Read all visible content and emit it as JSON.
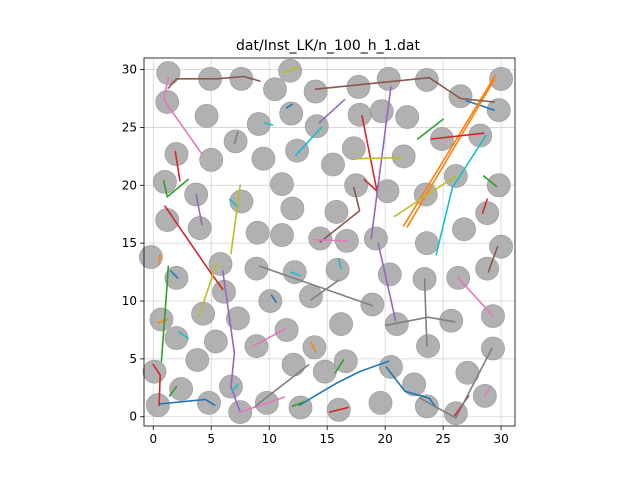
{
  "chart_data": {
    "type": "scatter",
    "title": "dat/Inst_LK/n_100_h_1.dat",
    "xlabel": "",
    "ylabel": "",
    "xlim": [
      -0.8,
      31.2
    ],
    "ylim": [
      -0.8,
      31.0
    ],
    "x_ticks": [
      0,
      5,
      10,
      15,
      20,
      25,
      30
    ],
    "y_ticks": [
      0,
      5,
      10,
      15,
      20,
      25,
      30
    ],
    "grid": true,
    "disk_radius": 1.0,
    "disks": [
      [
        1.3,
        29.7
      ],
      [
        4.9,
        29.2
      ],
      [
        7.6,
        29.2
      ],
      [
        11.8,
        29.9
      ],
      [
        17.7,
        28.5
      ],
      [
        20.3,
        29.2
      ],
      [
        23.6,
        29.1
      ],
      [
        26.5,
        27.7
      ],
      [
        30.0,
        29.2
      ],
      [
        1.2,
        27.2
      ],
      [
        10.5,
        28.3
      ],
      [
        14.0,
        28.1
      ],
      [
        17.8,
        26.1
      ],
      [
        19.7,
        26.4
      ],
      [
        21.9,
        25.9
      ],
      [
        29.8,
        26.5
      ],
      [
        4.6,
        26.0
      ],
      [
        9.1,
        25.3
      ],
      [
        11.9,
        26.2
      ],
      [
        14.1,
        25.1
      ],
      [
        24.9,
        24.0
      ],
      [
        28.2,
        24.3
      ],
      [
        7.1,
        23.8
      ],
      [
        2.0,
        22.7
      ],
      [
        5.0,
        22.2
      ],
      [
        9.5,
        22.3
      ],
      [
        12.4,
        23.0
      ],
      [
        15.5,
        21.8
      ],
      [
        17.3,
        23.2
      ],
      [
        21.6,
        22.5
      ],
      [
        1.0,
        20.3
      ],
      [
        11.1,
        20.1
      ],
      [
        17.5,
        20.0
      ],
      [
        20.2,
        19.5
      ],
      [
        23.5,
        19.2
      ],
      [
        26.1,
        20.8
      ],
      [
        29.8,
        20.0
      ],
      [
        3.7,
        19.2
      ],
      [
        7.6,
        18.6
      ],
      [
        12.0,
        18.0
      ],
      [
        15.8,
        17.7
      ],
      [
        28.8,
        17.6
      ],
      [
        1.2,
        17.0
      ],
      [
        4.0,
        16.3
      ],
      [
        9.0,
        15.9
      ],
      [
        11.1,
        15.7
      ],
      [
        14.4,
        15.4
      ],
      [
        16.7,
        15.2
      ],
      [
        19.2,
        15.4
      ],
      [
        23.6,
        15.0
      ],
      [
        26.8,
        16.2
      ],
      [
        30.0,
        14.7
      ],
      [
        -0.2,
        13.8
      ],
      [
        2.0,
        12.0
      ],
      [
        5.8,
        13.2
      ],
      [
        8.9,
        12.8
      ],
      [
        12.2,
        12.5
      ],
      [
        15.9,
        12.7
      ],
      [
        20.4,
        12.3
      ],
      [
        23.4,
        11.9
      ],
      [
        26.3,
        12.0
      ],
      [
        28.8,
        12.8
      ],
      [
        6.1,
        10.8
      ],
      [
        10.1,
        10.0
      ],
      [
        13.6,
        10.4
      ],
      [
        18.9,
        9.7
      ],
      [
        29.3,
        8.7
      ],
      [
        0.7,
        8.4
      ],
      [
        4.3,
        8.9
      ],
      [
        7.3,
        8.5
      ],
      [
        21.0,
        8.0
      ],
      [
        25.7,
        8.3
      ],
      [
        16.2,
        8.0
      ],
      [
        11.5,
        7.5
      ],
      [
        2.0,
        6.8
      ],
      [
        5.4,
        6.5
      ],
      [
        8.9,
        6.1
      ],
      [
        13.9,
        6.0
      ],
      [
        23.7,
        6.1
      ],
      [
        29.3,
        5.9
      ],
      [
        3.8,
        4.9
      ],
      [
        12.1,
        4.5
      ],
      [
        14.8,
        3.9
      ],
      [
        16.6,
        4.8
      ],
      [
        20.5,
        4.3
      ],
      [
        27.1,
        3.8
      ],
      [
        0.1,
        3.9
      ],
      [
        2.4,
        2.4
      ],
      [
        6.7,
        2.6
      ],
      [
        22.5,
        2.8
      ],
      [
        28.6,
        1.8
      ],
      [
        0.4,
        1.0
      ],
      [
        4.8,
        1.2
      ],
      [
        7.5,
        0.4
      ],
      [
        9.8,
        1.2
      ],
      [
        12.7,
        0.8
      ],
      [
        16.0,
        0.6
      ],
      [
        19.6,
        1.2
      ],
      [
        23.6,
        0.9
      ],
      [
        26.1,
        0.3
      ]
    ],
    "series": [
      {
        "color": "#1f77b4",
        "points": [
          [
            12.6,
            1.0
          ],
          [
            15.8,
            2.9
          ],
          [
            17.8,
            3.9
          ],
          [
            20.3,
            4.8
          ]
        ]
      },
      {
        "color": "#1f77b4",
        "points": [
          [
            20.1,
            4.3
          ],
          [
            21.7,
            2.2
          ],
          [
            23.8,
            1.6
          ],
          [
            24.4,
            0.8
          ]
        ]
      },
      {
        "color": "#1f77b4",
        "points": [
          [
            0.5,
            1.1
          ],
          [
            4.5,
            1.5
          ],
          [
            5.3,
            1.0
          ]
        ]
      },
      {
        "color": "#1f77b4",
        "points": [
          [
            1.5,
            12.6
          ],
          [
            2.1,
            12.0
          ]
        ]
      },
      {
        "color": "#1f77b4",
        "points": [
          [
            10.2,
            10.5
          ],
          [
            10.6,
            9.9
          ]
        ]
      },
      {
        "color": "#1f77b4",
        "points": [
          [
            27.0,
            27.3
          ],
          [
            29.4,
            26.5
          ]
        ]
      },
      {
        "color": "#1f77b4",
        "points": [
          [
            11.5,
            26.7
          ],
          [
            12.0,
            27.0
          ]
        ]
      },
      {
        "color": "#ff7f0e",
        "points": [
          [
            21.6,
            16.5
          ],
          [
            29.5,
            29.5
          ]
        ]
      },
      {
        "color": "#ff7f0e",
        "points": [
          [
            21.9,
            16.4
          ],
          [
            29.4,
            29.1
          ]
        ]
      },
      {
        "color": "#ff7f0e",
        "points": [
          [
            0.4,
            8.1
          ],
          [
            1.2,
            8.4
          ]
        ]
      },
      {
        "color": "#ff7f0e",
        "points": [
          [
            0.6,
            14.0
          ],
          [
            0.5,
            13.3
          ]
        ]
      },
      {
        "color": "#ff7f0e",
        "points": [
          [
            13.6,
            6.4
          ],
          [
            14.0,
            5.6
          ]
        ]
      },
      {
        "color": "#2ca02c",
        "points": [
          [
            0.7,
            4.8
          ],
          [
            1.2,
            11.5
          ],
          [
            1.3,
            13.0
          ]
        ]
      },
      {
        "color": "#2ca02c",
        "points": [
          [
            3.0,
            20.5
          ],
          [
            1.2,
            19.0
          ],
          [
            0.9,
            20.4
          ]
        ]
      },
      {
        "color": "#2ca02c",
        "points": [
          [
            22.8,
            24.0
          ],
          [
            25.0,
            25.7
          ]
        ]
      },
      {
        "color": "#2ca02c",
        "points": [
          [
            28.5,
            20.8
          ],
          [
            29.6,
            19.9
          ]
        ]
      },
      {
        "color": "#2ca02c",
        "points": [
          [
            15.7,
            3.8
          ],
          [
            16.4,
            4.9
          ]
        ]
      },
      {
        "color": "#2ca02c",
        "points": [
          [
            1.4,
            1.8
          ],
          [
            2.0,
            2.6
          ]
        ]
      },
      {
        "color": "#2ca02c",
        "points": [
          [
            12.0,
            0.9
          ],
          [
            13.0,
            1.3
          ]
        ]
      },
      {
        "color": "#d62728",
        "points": [
          [
            0.0,
            4.5
          ],
          [
            0.6,
            3.6
          ],
          [
            0.5,
            1.0
          ]
        ]
      },
      {
        "color": "#d62728",
        "points": [
          [
            1.9,
            22.9
          ],
          [
            2.3,
            20.4
          ]
        ]
      },
      {
        "color": "#d62728",
        "points": [
          [
            1.0,
            18.2
          ],
          [
            4.7,
            12.8
          ],
          [
            6.0,
            11.0
          ]
        ]
      },
      {
        "color": "#d62728",
        "points": [
          [
            24.0,
            24.0
          ],
          [
            28.5,
            24.5
          ]
        ]
      },
      {
        "color": "#d62728",
        "points": [
          [
            28.4,
            17.6
          ],
          [
            28.8,
            18.8
          ]
        ]
      },
      {
        "color": "#d62728",
        "points": [
          [
            26.0,
            0.1
          ],
          [
            27.2,
            1.8
          ]
        ]
      },
      {
        "color": "#d62728",
        "points": [
          [
            15.2,
            0.4
          ],
          [
            16.8,
            0.8
          ]
        ]
      },
      {
        "color": "#d62728",
        "points": [
          [
            18.2,
            20.5
          ],
          [
            19.3,
            19.5
          ],
          [
            18.0,
            26.0
          ]
        ]
      },
      {
        "color": "#9467bd",
        "points": [
          [
            6.0,
            12.6
          ],
          [
            7.0,
            5.5
          ],
          [
            6.7,
            2.6
          ],
          [
            7.5,
            0.4
          ]
        ]
      },
      {
        "color": "#9467bd",
        "points": [
          [
            18.8,
            15.4
          ],
          [
            20.5,
            28.5
          ]
        ]
      },
      {
        "color": "#9467bd",
        "points": [
          [
            19.4,
            15.0
          ],
          [
            20.9,
            8.3
          ]
        ]
      },
      {
        "color": "#9467bd",
        "points": [
          [
            3.7,
            19.2
          ],
          [
            4.2,
            16.6
          ]
        ]
      },
      {
        "color": "#9467bd",
        "points": [
          [
            14.3,
            25.4
          ],
          [
            16.5,
            27.4
          ]
        ]
      },
      {
        "color": "#8c564b",
        "points": [
          [
            1.3,
            28.4
          ],
          [
            2.0,
            29.2
          ],
          [
            5.5,
            29.2
          ],
          [
            7.8,
            29.4
          ],
          [
            9.2,
            29.0
          ]
        ]
      },
      {
        "color": "#8c564b",
        "points": [
          [
            14.0,
            28.3
          ],
          [
            23.8,
            29.3
          ],
          [
            26.5,
            27.5
          ],
          [
            29.4,
            27.2
          ]
        ]
      },
      {
        "color": "#8c564b",
        "points": [
          [
            14.4,
            15.1
          ],
          [
            17.8,
            17.8
          ],
          [
            17.3,
            19.8
          ]
        ]
      },
      {
        "color": "#8c564b",
        "points": [
          [
            28.9,
            12.5
          ],
          [
            29.7,
            14.7
          ]
        ]
      },
      {
        "color": "#e377c2",
        "points": [
          [
            1.3,
            29.3
          ],
          [
            0.9,
            27.4
          ],
          [
            4.2,
            22.7
          ]
        ]
      },
      {
        "color": "#e377c2",
        "points": [
          [
            8.6,
            6.1
          ],
          [
            11.4,
            7.6
          ]
        ]
      },
      {
        "color": "#e377c2",
        "points": [
          [
            26.3,
            12.0
          ],
          [
            29.3,
            8.7
          ]
        ]
      },
      {
        "color": "#e377c2",
        "points": [
          [
            13.9,
            15.3
          ],
          [
            16.7,
            15.2
          ]
        ]
      },
      {
        "color": "#e377c2",
        "points": [
          [
            7.5,
            0.4
          ],
          [
            11.3,
            1.7
          ]
        ]
      },
      {
        "color": "#e377c2",
        "points": [
          [
            28.6,
            1.8
          ],
          [
            29.0,
            2.5
          ]
        ]
      },
      {
        "color": "#7f7f7f",
        "points": [
          [
            8.8,
            0.9
          ],
          [
            13.4,
            4.5
          ]
        ]
      },
      {
        "color": "#7f7f7f",
        "points": [
          [
            9.2,
            13.0
          ],
          [
            18.9,
            9.6
          ]
        ]
      },
      {
        "color": "#7f7f7f",
        "points": [
          [
            13.6,
            10.1
          ],
          [
            16.0,
            11.8
          ]
        ]
      },
      {
        "color": "#7f7f7f",
        "points": [
          [
            20.1,
            7.9
          ],
          [
            23.7,
            8.6
          ],
          [
            26.0,
            8.2
          ]
        ]
      },
      {
        "color": "#7f7f7f",
        "points": [
          [
            23.4,
            11.9
          ],
          [
            23.6,
            6.1
          ]
        ]
      },
      {
        "color": "#7f7f7f",
        "points": [
          [
            23.0,
            1.6
          ],
          [
            26.1,
            -0.1
          ],
          [
            29.2,
            5.9
          ]
        ]
      },
      {
        "color": "#7f7f7f",
        "points": [
          [
            7.0,
            23.6
          ],
          [
            7.3,
            24.6
          ]
        ]
      },
      {
        "color": "#bcbd22",
        "points": [
          [
            6.7,
            14.1
          ],
          [
            7.5,
            20.0
          ]
        ]
      },
      {
        "color": "#bcbd22",
        "points": [
          [
            3.9,
            8.6
          ],
          [
            5.5,
            13.3
          ]
        ]
      },
      {
        "color": "#bcbd22",
        "points": [
          [
            17.6,
            22.3
          ],
          [
            21.5,
            22.4
          ]
        ]
      },
      {
        "color": "#bcbd22",
        "points": [
          [
            20.8,
            17.3
          ],
          [
            26.1,
            20.8
          ]
        ]
      },
      {
        "color": "#bcbd22",
        "points": [
          [
            11.2,
            29.7
          ],
          [
            12.5,
            30.2
          ]
        ]
      },
      {
        "color": "#17becf",
        "points": [
          [
            24.4,
            14.0
          ],
          [
            25.8,
            19.8
          ],
          [
            28.7,
            24.3
          ]
        ]
      },
      {
        "color": "#17becf",
        "points": [
          [
            12.3,
            22.6
          ],
          [
            14.5,
            25.0
          ]
        ]
      },
      {
        "color": "#17becf",
        "points": [
          [
            7.2,
            18.2
          ],
          [
            6.6,
            18.8
          ]
        ]
      },
      {
        "color": "#17becf",
        "points": [
          [
            16.2,
            12.8
          ],
          [
            16.0,
            13.6
          ]
        ]
      },
      {
        "color": "#17becf",
        "points": [
          [
            3.0,
            6.8
          ],
          [
            2.2,
            7.3
          ]
        ]
      },
      {
        "color": "#17becf",
        "points": [
          [
            11.9,
            12.5
          ],
          [
            12.7,
            12.2
          ]
        ]
      },
      {
        "color": "#17becf",
        "points": [
          [
            6.8,
            2.2
          ],
          [
            7.3,
            2.8
          ]
        ]
      },
      {
        "color": "#17becf",
        "points": [
          [
            9.6,
            25.4
          ],
          [
            10.3,
            25.2
          ]
        ]
      }
    ]
  }
}
